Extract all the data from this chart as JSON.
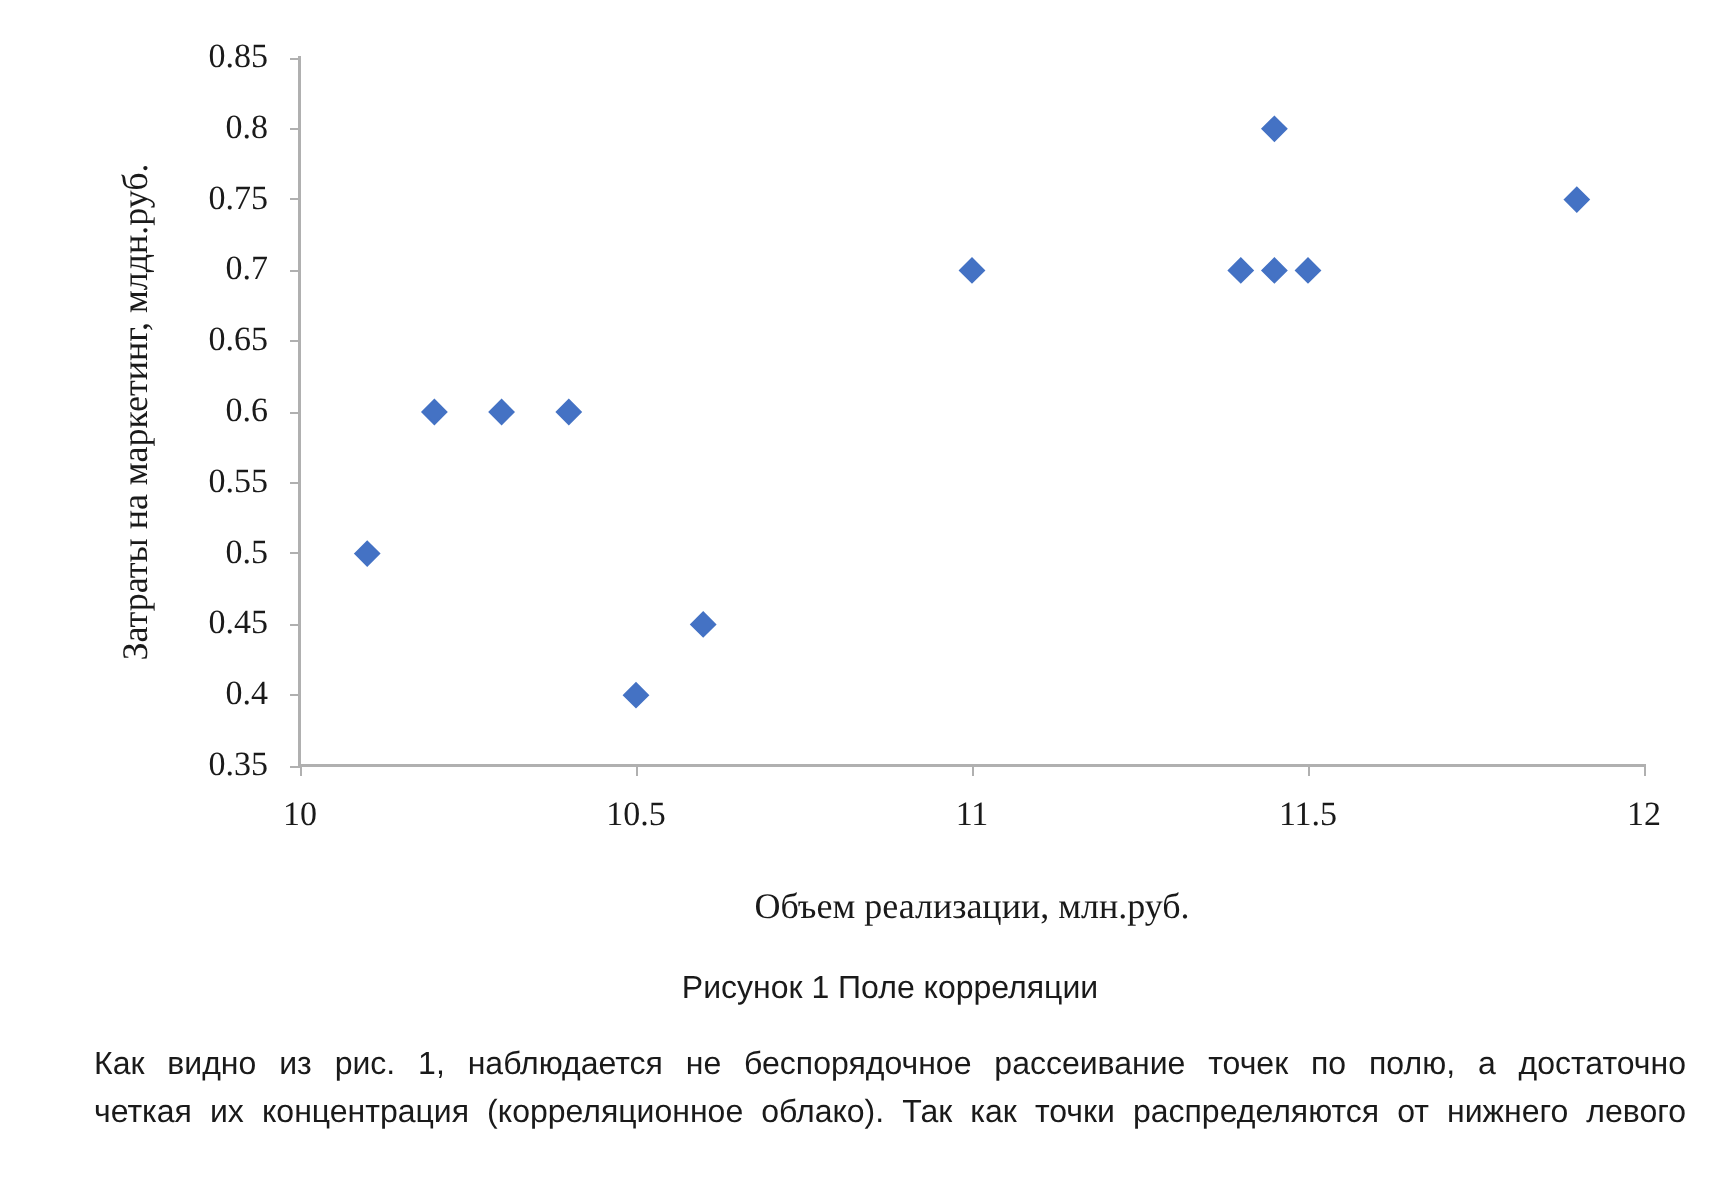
{
  "chart_data": {
    "type": "scatter",
    "xlabel": "Объем реализации, млн.руб.",
    "ylabel": "Затраты на маркетинг, млдн.руб.",
    "x": [
      10.1,
      10.2,
      10.3,
      10.4,
      10.5,
      10.6,
      11,
      11.4,
      11.45,
      11.45,
      11.5,
      11.9
    ],
    "values": [
      0.5,
      0.6,
      0.6,
      0.6,
      0.4,
      0.45,
      0.7,
      0.7,
      0.7,
      0.8,
      0.7,
      0.75
    ],
    "color": "#4472c4",
    "marker": "diamond",
    "xlim": [
      10,
      12
    ],
    "xticks": [
      10,
      10.5,
      11,
      11.5,
      12
    ],
    "ylim": [
      0.35,
      0.85
    ],
    "yticks": [
      0.35,
      0.4,
      0.45,
      0.5,
      0.55,
      0.6,
      0.65,
      0.7,
      0.75,
      0.8,
      0.85
    ],
    "grid": false,
    "annotations": [
      "Рисунок 1 Поле корреляции",
      "Как видно из рис. 1, наблюдается не беспорядочное рассеивание точек по полю, а достаточно четкая их концентрация (корреляционное облако). Так как точки распределяются от нижнего левого"
    ]
  }
}
